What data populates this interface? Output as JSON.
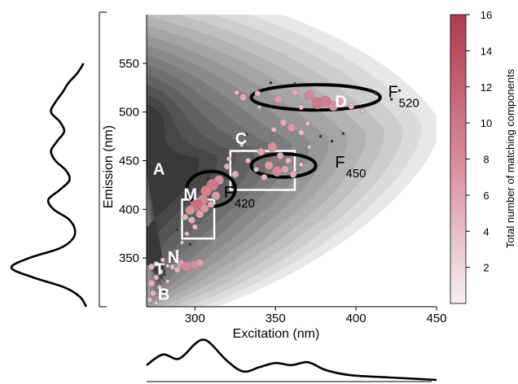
{
  "chart_data": {
    "type": "scatter",
    "xlabel": "Excitation (nm)",
    "ylabel": "Emission (nm)",
    "xlim": [
      270,
      450
    ],
    "ylim": [
      300,
      600
    ],
    "x_ticks": [
      300,
      350,
      400,
      450
    ],
    "y_ticks": [
      350,
      400,
      450,
      500,
      550
    ],
    "colorbar": {
      "label": "Total number of matching components",
      "range": [
        0,
        16
      ],
      "ticks": [
        2,
        4,
        6,
        8,
        10,
        12,
        14,
        16
      ],
      "color_low": "#f5f0f1",
      "color_high": "#b03a4e"
    },
    "background": "filled contour of EEM fluorescence (dark grey at short excitation, fading to white at long excitation)",
    "region_boxes": [
      {
        "name": "C",
        "x": [
          322,
          362
        ],
        "y": [
          420,
          460
        ]
      },
      {
        "name": "M",
        "x": [
          292,
          312
        ],
        "y": [
          370,
          410
        ]
      }
    ],
    "ellipses": [
      {
        "name": "F520",
        "cx": 375,
        "cy": 515,
        "rx": 40,
        "ry": 13
      },
      {
        "name": "F450",
        "cx": 355,
        "cy": 445,
        "rx": 20,
        "ry": 12
      },
      {
        "name": "F420",
        "cx": 310,
        "cy": 421,
        "rx": 15,
        "ry": 18
      }
    ],
    "labels": [
      {
        "text": "A",
        "x": 274,
        "y": 436
      },
      {
        "text": "C",
        "x": 325,
        "y": 467
      },
      {
        "text": "M",
        "x": 293,
        "y": 410
      },
      {
        "text": "N",
        "x": 283,
        "y": 345
      },
      {
        "text": "T",
        "x": 275,
        "y": 333
      },
      {
        "text": "B",
        "x": 277,
        "y": 307
      },
      {
        "text": "D",
        "x": 387,
        "y": 505
      }
    ],
    "feature_labels": [
      {
        "main": "F",
        "sub": "520",
        "x": 420,
        "y": 515
      },
      {
        "main": "F",
        "sub": "450",
        "x": 387,
        "y": 443
      },
      {
        "main": "F",
        "sub": "420",
        "x": 318,
        "y": 412
      }
    ],
    "points": [
      {
        "x": 330,
        "y": 515,
        "n": 6
      },
      {
        "x": 339,
        "y": 519,
        "n": 5
      },
      {
        "x": 352,
        "y": 513,
        "n": 8
      },
      {
        "x": 362,
        "y": 520,
        "n": 6
      },
      {
        "x": 371,
        "y": 517,
        "n": 10
      },
      {
        "x": 376,
        "y": 509,
        "n": 12
      },
      {
        "x": 381,
        "y": 511,
        "n": 11
      },
      {
        "x": 386,
        "y": 506,
        "n": 9
      },
      {
        "x": 391,
        "y": 511,
        "n": 7
      },
      {
        "x": 397,
        "y": 506,
        "n": 5
      },
      {
        "x": 404,
        "y": 501,
        "n": 3
      },
      {
        "x": 366,
        "y": 505,
        "n": 4
      },
      {
        "x": 340,
        "y": 505,
        "n": 2
      },
      {
        "x": 326,
        "y": 520,
        "n": 3
      },
      {
        "x": 355,
        "y": 489,
        "n": 6
      },
      {
        "x": 360,
        "y": 484,
        "n": 8
      },
      {
        "x": 366,
        "y": 479,
        "n": 5
      },
      {
        "x": 349,
        "y": 482,
        "n": 4
      },
      {
        "x": 370,
        "y": 488,
        "n": 3
      },
      {
        "x": 341,
        "y": 459,
        "n": 7
      },
      {
        "x": 348,
        "y": 464,
        "n": 9
      },
      {
        "x": 353,
        "y": 455,
        "n": 6
      },
      {
        "x": 358,
        "y": 450,
        "n": 5
      },
      {
        "x": 346,
        "y": 445,
        "n": 8
      },
      {
        "x": 351,
        "y": 439,
        "n": 10
      },
      {
        "x": 356,
        "y": 441,
        "n": 7
      },
      {
        "x": 361,
        "y": 436,
        "n": 6
      },
      {
        "x": 338,
        "y": 441,
        "n": 4
      },
      {
        "x": 366,
        "y": 446,
        "n": 3
      },
      {
        "x": 343,
        "y": 433,
        "n": 5
      },
      {
        "x": 333,
        "y": 450,
        "n": 4
      },
      {
        "x": 325,
        "y": 436,
        "n": 6
      },
      {
        "x": 320,
        "y": 444,
        "n": 5
      },
      {
        "x": 315,
        "y": 430,
        "n": 9
      },
      {
        "x": 311,
        "y": 425,
        "n": 12
      },
      {
        "x": 307,
        "y": 419,
        "n": 11
      },
      {
        "x": 313,
        "y": 414,
        "n": 8
      },
      {
        "x": 305,
        "y": 410,
        "n": 10
      },
      {
        "x": 301,
        "y": 404,
        "n": 13
      },
      {
        "x": 297,
        "y": 399,
        "n": 9
      },
      {
        "x": 303,
        "y": 395,
        "n": 7
      },
      {
        "x": 298,
        "y": 389,
        "n": 6
      },
      {
        "x": 294,
        "y": 392,
        "n": 5
      },
      {
        "x": 306,
        "y": 401,
        "n": 8
      },
      {
        "x": 300,
        "y": 382,
        "n": 4
      },
      {
        "x": 310,
        "y": 405,
        "n": 6
      },
      {
        "x": 295,
        "y": 375,
        "n": 3
      },
      {
        "x": 292,
        "y": 366,
        "n": 2
      },
      {
        "x": 289,
        "y": 357,
        "n": 2
      },
      {
        "x": 286,
        "y": 350,
        "n": 1
      },
      {
        "x": 283,
        "y": 342,
        "n": 2
      },
      {
        "x": 280,
        "y": 348,
        "n": 3
      },
      {
        "x": 276,
        "y": 344,
        "n": 4
      },
      {
        "x": 273,
        "y": 341,
        "n": 5
      },
      {
        "x": 279,
        "y": 336,
        "n": 3
      },
      {
        "x": 286,
        "y": 341,
        "n": 4
      },
      {
        "x": 291,
        "y": 344,
        "n": 8
      },
      {
        "x": 295,
        "y": 341,
        "n": 10
      },
      {
        "x": 300,
        "y": 343,
        "n": 9
      },
      {
        "x": 303,
        "y": 345,
        "n": 7
      },
      {
        "x": 289,
        "y": 338,
        "n": 5
      },
      {
        "x": 276,
        "y": 330,
        "n": 4
      },
      {
        "x": 273,
        "y": 324,
        "n": 6
      },
      {
        "x": 278,
        "y": 320,
        "n": 3
      },
      {
        "x": 274,
        "y": 314,
        "n": 5
      },
      {
        "x": 272,
        "y": 307,
        "n": 4
      },
      {
        "x": 276,
        "y": 304,
        "n": 2
      },
      {
        "x": 281,
        "y": 315,
        "n": 1
      },
      {
        "x": 283,
        "y": 326,
        "n": 2
      },
      {
        "x": 321,
        "y": 452,
        "n": 3
      },
      {
        "x": 329,
        "y": 466,
        "n": 2
      },
      {
        "x": 371,
        "y": 464,
        "n": 2
      },
      {
        "x": 378,
        "y": 475,
        "n": 1
      },
      {
        "x": 347,
        "y": 530,
        "n": 1
      },
      {
        "x": 412,
        "y": 519,
        "n": 1
      },
      {
        "x": 422,
        "y": 513,
        "n": 1
      },
      {
        "x": 427,
        "y": 522,
        "n": 1
      },
      {
        "x": 362,
        "y": 529,
        "n": 1
      },
      {
        "x": 385,
        "y": 470,
        "n": 1
      },
      {
        "x": 392,
        "y": 478,
        "n": 1
      },
      {
        "x": 332,
        "y": 477,
        "n": 1
      },
      {
        "x": 308,
        "y": 432,
        "n": 1
      },
      {
        "x": 289,
        "y": 379,
        "n": 1
      },
      {
        "x": 297,
        "y": 364,
        "n": 1
      }
    ],
    "left_spectrum": {
      "description": "Emission spectrum curve (left marginal)",
      "y": [
        300,
        310,
        320,
        330,
        340,
        350,
        360,
        370,
        380,
        390,
        400,
        410,
        420,
        430,
        440,
        450,
        460,
        470,
        480,
        490,
        500,
        510,
        520,
        530,
        540,
        550
      ],
      "intensity": [
        0.15,
        0.22,
        0.4,
        0.75,
        1.0,
        0.8,
        0.45,
        0.3,
        0.28,
        0.35,
        0.52,
        0.58,
        0.45,
        0.34,
        0.38,
        0.5,
        0.55,
        0.48,
        0.4,
        0.45,
        0.55,
        0.5,
        0.42,
        0.35,
        0.25,
        0.18
      ]
    },
    "bottom_spectrum": {
      "description": "Excitation spectrum curve (bottom marginal)",
      "x": [
        270,
        280,
        290,
        300,
        305,
        310,
        320,
        330,
        340,
        350,
        360,
        370,
        380,
        390,
        400,
        420,
        440,
        450
      ],
      "intensity": [
        0.35,
        0.6,
        0.5,
        0.85,
        0.95,
        0.85,
        0.45,
        0.2,
        0.3,
        0.4,
        0.35,
        0.42,
        0.25,
        0.15,
        0.1,
        0.06,
        0.02,
        0.0
      ]
    }
  }
}
